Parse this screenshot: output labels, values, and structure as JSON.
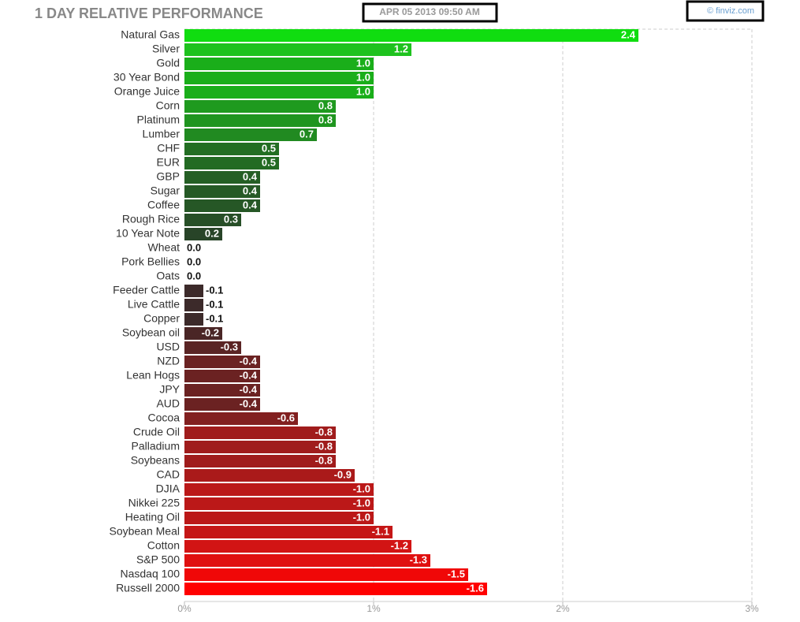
{
  "chart_data": {
    "type": "bar",
    "orientation": "horizontal",
    "title": "1 DAY RELATIVE PERFORMANCE",
    "timestamp": "APR 05 2013 09:50 AM",
    "source": "© finviz.com",
    "categories": [
      "Natural Gas",
      "Silver",
      "Gold",
      "30 Year Bond",
      "Orange Juice",
      "Corn",
      "Platinum",
      "Lumber",
      "CHF",
      "EUR",
      "GBP",
      "Sugar",
      "Coffee",
      "Rough Rice",
      "10 Year Note",
      "Wheat",
      "Pork Bellies",
      "Oats",
      "Feeder Cattle",
      "Live Cattle",
      "Copper",
      "Soybean oil",
      "USD",
      "NZD",
      "Lean Hogs",
      "JPY",
      "AUD",
      "Cocoa",
      "Crude Oil",
      "Palladium",
      "Soybeans",
      "CAD",
      "DJIA",
      "Nikkei 225",
      "Heating Oil",
      "Soybean Meal",
      "Cotton",
      "S&P 500",
      "Nasdaq 100",
      "Russell 2000"
    ],
    "values": [
      2.4,
      1.2,
      1.0,
      1.0,
      1.0,
      0.8,
      0.8,
      0.7,
      0.5,
      0.5,
      0.4,
      0.4,
      0.4,
      0.3,
      0.2,
      0.0,
      0.0,
      0.0,
      -0.1,
      -0.1,
      -0.1,
      -0.2,
      -0.3,
      -0.4,
      -0.4,
      -0.4,
      -0.4,
      -0.6,
      -0.8,
      -0.8,
      -0.8,
      -0.9,
      -1.0,
      -1.0,
      -1.0,
      -1.1,
      -1.2,
      -1.3,
      -1.5,
      -1.6
    ],
    "value_labels": [
      "2.4",
      "1.2",
      "1.0",
      "1.0",
      "1.0",
      "0.8",
      "0.8",
      "0.7",
      "0.5",
      "0.5",
      "0.4",
      "0.4",
      "0.4",
      "0.3",
      "0.2",
      "0.0",
      "0.0",
      "0.0",
      "-0.1",
      "-0.1",
      "-0.1",
      "-0.2",
      "-0.3",
      "-0.4",
      "-0.4",
      "-0.4",
      "-0.4",
      "-0.6",
      "-0.8",
      "-0.8",
      "-0.8",
      "-0.9",
      "-1.0",
      "-1.0",
      "-1.0",
      "-1.1",
      "-1.2",
      "-1.3",
      "-1.5",
      "-1.6"
    ],
    "colors": [
      "#10dd10",
      "#1ec21e",
      "#1aae1a",
      "#1aae1a",
      "#1aae1a",
      "#1f9a1f",
      "#1f951f",
      "#218a21",
      "#236e23",
      "#236b23",
      "#255f25",
      "#265a26",
      "#265726",
      "#274f27",
      "#284428",
      "#333333",
      "#333333",
      "#333333",
      "#3c2a2a",
      "#3c2a2a",
      "#3c2a2a",
      "#4a2626",
      "#5a2424",
      "#6b2222",
      "#6b2222",
      "#6b2222",
      "#6b2222",
      "#822020",
      "#a01c1c",
      "#a01c1c",
      "#a01c1c",
      "#aa1a1a",
      "#bb1818",
      "#bb1818",
      "#bb1818",
      "#c51616",
      "#d21414",
      "#e01010",
      "#f00808",
      "#ff0000"
    ],
    "xlim": [
      0,
      3
    ],
    "xticks": [
      {
        "value": 0,
        "label": "0%"
      },
      {
        "value": 1,
        "label": "1%"
      },
      {
        "value": 2,
        "label": "2%"
      },
      {
        "value": 3,
        "label": "3%"
      }
    ],
    "grid": true
  }
}
